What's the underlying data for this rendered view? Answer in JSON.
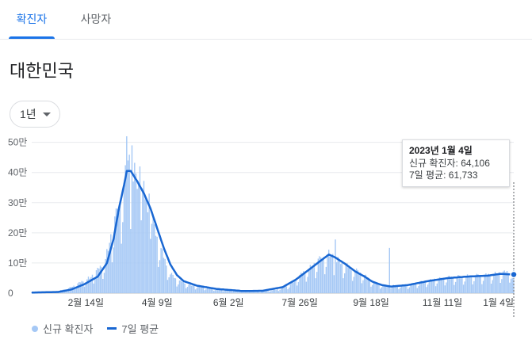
{
  "tabs": [
    {
      "label": "확진자",
      "active": true
    },
    {
      "label": "사망자",
      "active": false
    }
  ],
  "region": "대한민국",
  "period": {
    "selected": "1년"
  },
  "colors": {
    "accent": "#1a73e8",
    "bar": "#a5c8f5",
    "line": "#1967d2"
  },
  "tooltip": {
    "date": "2023년 1월 4일",
    "new_cases_label": "신규 확진자: 64,106",
    "avg_label": "7일 평균: 61,733"
  },
  "legend": {
    "bars": "신규 확진자",
    "line": "7일 평균"
  },
  "chart_data": {
    "type": "bar",
    "ylim": [
      0,
      520000
    ],
    "yticks": [
      "0",
      "10만",
      "20만",
      "30만",
      "40만",
      "50만"
    ],
    "ytick_values": [
      0,
      100000,
      200000,
      300000,
      400000,
      500000
    ],
    "xticks": [
      "2월 14일",
      "4월 9일",
      "6월 2일",
      "7월 26일",
      "9월 18일",
      "11월 11일",
      "1월 4일"
    ],
    "xtick_days": [
      41,
      95,
      149,
      203,
      257,
      311,
      365
    ],
    "x_start": "2022-01-05",
    "x_end": "2023-01-04",
    "series": [
      {
        "name": "신규 확진자",
        "kind": "bar",
        "anchors": [
          [
            0,
            3000
          ],
          [
            20,
            6000
          ],
          [
            30,
            18000
          ],
          [
            45,
            50000
          ],
          [
            55,
            90000
          ],
          [
            60,
            170000
          ],
          [
            65,
            250000
          ],
          [
            70,
            330000
          ],
          [
            73,
            400000
          ],
          [
            76,
            380000
          ],
          [
            80,
            340000
          ],
          [
            85,
            310000
          ],
          [
            90,
            240000
          ],
          [
            95,
            170000
          ],
          [
            100,
            110000
          ],
          [
            105,
            60000
          ],
          [
            110,
            40000
          ],
          [
            120,
            25000
          ],
          [
            135,
            15000
          ],
          [
            150,
            9000
          ],
          [
            170,
            6000
          ],
          [
            185,
            10000
          ],
          [
            195,
            25000
          ],
          [
            205,
            60000
          ],
          [
            215,
            90000
          ],
          [
            220,
            110000
          ],
          [
            225,
            120000
          ],
          [
            232,
            100000
          ],
          [
            240,
            80000
          ],
          [
            250,
            60000
          ],
          [
            255,
            45000
          ],
          [
            260,
            30000
          ],
          [
            270,
            22000
          ],
          [
            285,
            25000
          ],
          [
            300,
            38000
          ],
          [
            315,
            48000
          ],
          [
            330,
            52000
          ],
          [
            345,
            55000
          ],
          [
            355,
            62000
          ],
          [
            365,
            64106
          ]
        ],
        "spikes": [
          [
            72,
            560000
          ],
          [
            76,
            490000
          ],
          [
            82,
            420000
          ],
          [
            89,
            330000
          ],
          [
            230,
            178000
          ],
          [
            271,
            150000
          ]
        ]
      },
      {
        "name": "7일 평균",
        "kind": "line",
        "anchors": [
          [
            0,
            2000
          ],
          [
            20,
            4000
          ],
          [
            30,
            12000
          ],
          [
            40,
            30000
          ],
          [
            50,
            55000
          ],
          [
            57,
            100000
          ],
          [
            62,
            180000
          ],
          [
            66,
            280000
          ],
          [
            70,
            360000
          ],
          [
            72,
            405000
          ],
          [
            75,
            405000
          ],
          [
            80,
            370000
          ],
          [
            85,
            330000
          ],
          [
            90,
            280000
          ],
          [
            95,
            215000
          ],
          [
            100,
            150000
          ],
          [
            105,
            95000
          ],
          [
            110,
            60000
          ],
          [
            115,
            40000
          ],
          [
            125,
            25000
          ],
          [
            140,
            14000
          ],
          [
            160,
            7000
          ],
          [
            175,
            8000
          ],
          [
            190,
            20000
          ],
          [
            200,
            45000
          ],
          [
            210,
            78000
          ],
          [
            218,
            105000
          ],
          [
            225,
            128000
          ],
          [
            230,
            118000
          ],
          [
            238,
            95000
          ],
          [
            245,
            72000
          ],
          [
            252,
            55000
          ],
          [
            258,
            38000
          ],
          [
            265,
            27000
          ],
          [
            272,
            22000
          ],
          [
            285,
            27000
          ],
          [
            300,
            40000
          ],
          [
            315,
            50000
          ],
          [
            330,
            55000
          ],
          [
            345,
            58000
          ],
          [
            355,
            64000
          ],
          [
            365,
            61733
          ]
        ]
      }
    ]
  }
}
